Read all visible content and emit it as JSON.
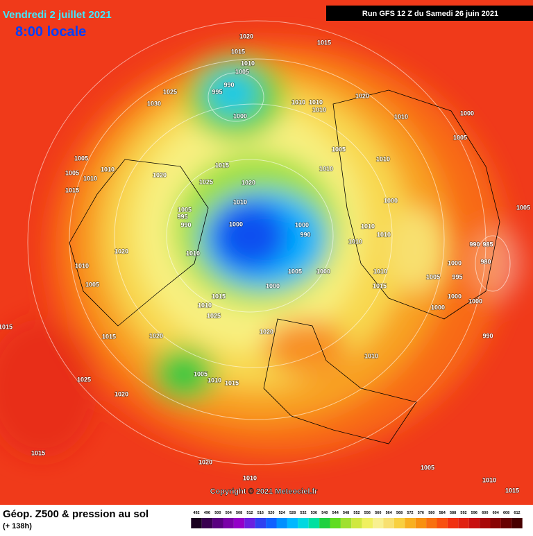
{
  "header": {
    "date": "Vendredi 2 juillet 2021",
    "time": "8:00 locale",
    "run": "Run GFS 12 Z du Samedi 26 juin 2021"
  },
  "copyright": "Copyright © 2021 Meteociel.fr",
  "footer": {
    "title": "Géop. Z500 & pression au sol",
    "lead": "(+ 138h)"
  },
  "legend": {
    "values": [
      492,
      496,
      500,
      504,
      508,
      512,
      516,
      520,
      524,
      528,
      532,
      536,
      540,
      544,
      548,
      552,
      556,
      560,
      564,
      568,
      572,
      576,
      580,
      584,
      588,
      592,
      596,
      600,
      604,
      608,
      612
    ],
    "colors": [
      "#1a0020",
      "#3a0050",
      "#5a0080",
      "#7a00a8",
      "#9400c8",
      "#6a20e0",
      "#3040f0",
      "#1060ff",
      "#0090ff",
      "#00b8ff",
      "#00d8e0",
      "#00e0a0",
      "#20d040",
      "#60dc20",
      "#a0e030",
      "#d0e840",
      "#f0f060",
      "#f8f090",
      "#f8e070",
      "#f8d040",
      "#f8b020",
      "#f89010",
      "#f87010",
      "#f85010",
      "#f03010",
      "#e02010",
      "#c81010",
      "#a80808",
      "#880404",
      "#680202",
      "#480000"
    ]
  },
  "isobars": [
    "1020",
    "1015",
    "1015",
    "1010",
    "1005",
    "990",
    "995",
    "1025",
    "1030",
    "1010",
    "1010",
    "1010",
    "1020",
    "1000",
    "1010",
    "1000",
    "1005",
    "1005",
    "1010",
    "1015",
    "1010",
    "1005",
    "1010",
    "1005",
    "1010",
    "1020",
    "1025",
    "1020",
    "1015",
    "1010",
    "1000",
    "1005",
    "1005",
    "995",
    "990",
    "1000",
    "1000",
    "990",
    "1010",
    "1010",
    "1010",
    "990",
    "985",
    "1020",
    "1010",
    "980",
    "1000",
    "1010",
    "1005",
    "1005",
    "1000",
    "1010",
    "1005",
    "995",
    "1000",
    "1015",
    "1000",
    "1000",
    "1015",
    "1010",
    "1000",
    "1025",
    "1015",
    "1020",
    "1015",
    "1020",
    "990",
    "1010",
    "1005",
    "1010",
    "1015",
    "1025",
    "1020",
    "1015",
    "1020",
    "1005",
    "1010",
    "1010",
    "1015"
  ]
}
